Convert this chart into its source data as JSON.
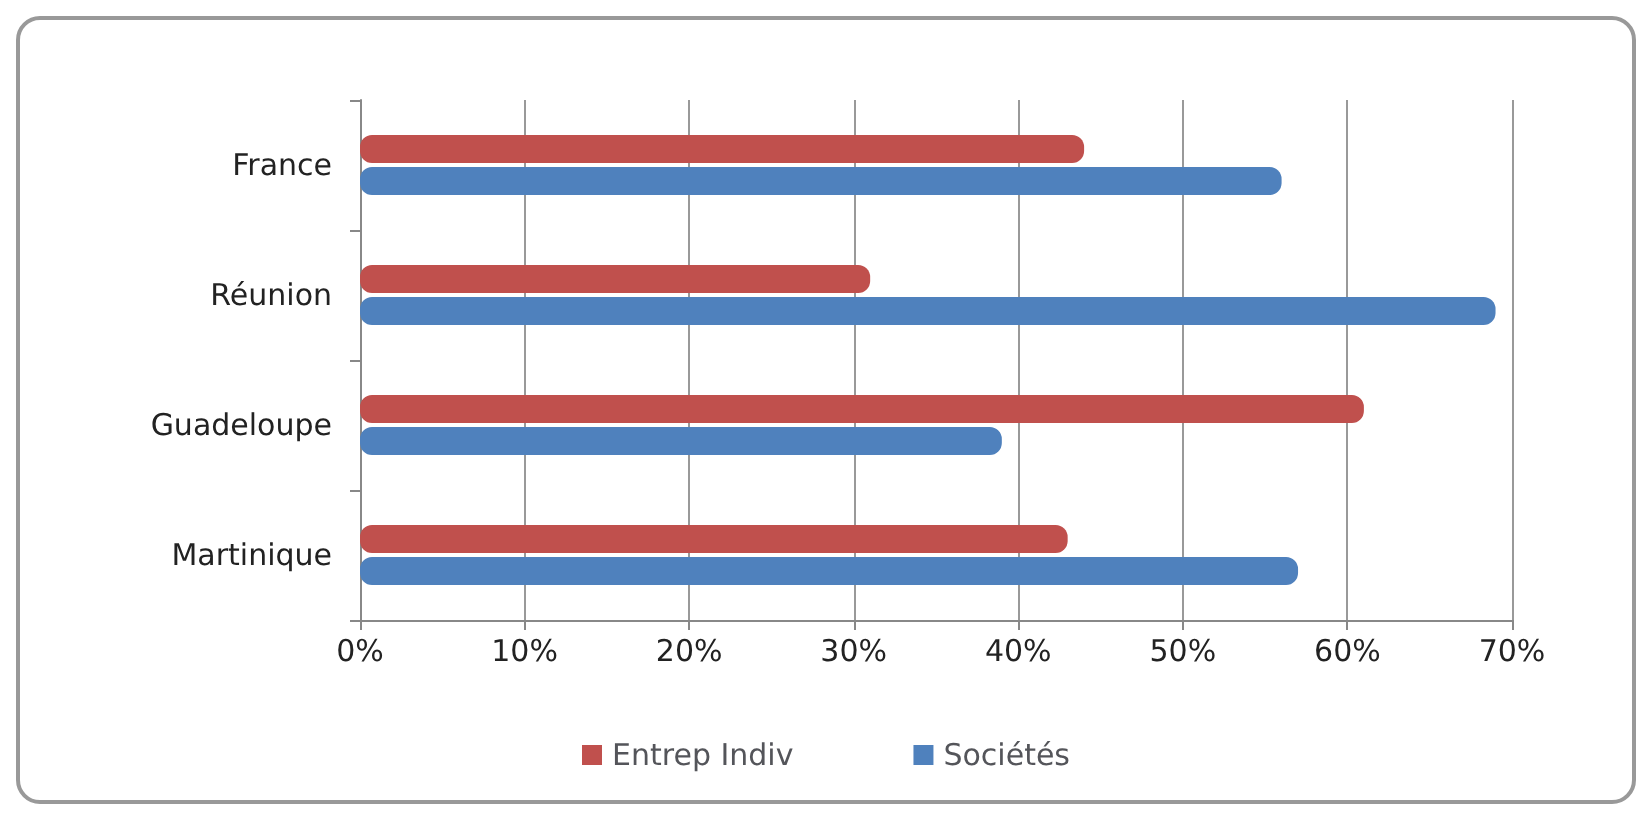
{
  "chart_data": {
    "type": "bar",
    "orientation": "horizontal",
    "categories": [
      "France",
      "Réunion",
      "Guadeloupe",
      "Martinique"
    ],
    "series": [
      {
        "name": "Entrep Indiv",
        "color": "#c0504d",
        "values": [
          44,
          31,
          61,
          43
        ]
      },
      {
        "name": "Sociétés",
        "color": "#4f81bd",
        "values": [
          56,
          69,
          39,
          57
        ]
      }
    ],
    "xlim": [
      0,
      70
    ],
    "xticks": [
      {
        "value": 0,
        "label": "0%"
      },
      {
        "value": 10,
        "label": "10%"
      },
      {
        "value": 20,
        "label": "20%"
      },
      {
        "value": 30,
        "label": "30%"
      },
      {
        "value": 40,
        "label": "40%"
      },
      {
        "value": 50,
        "label": "50%"
      },
      {
        "value": 60,
        "label": "60%"
      },
      {
        "value": 70,
        "label": "70%"
      }
    ],
    "grid": "x",
    "legend": "bottom"
  }
}
